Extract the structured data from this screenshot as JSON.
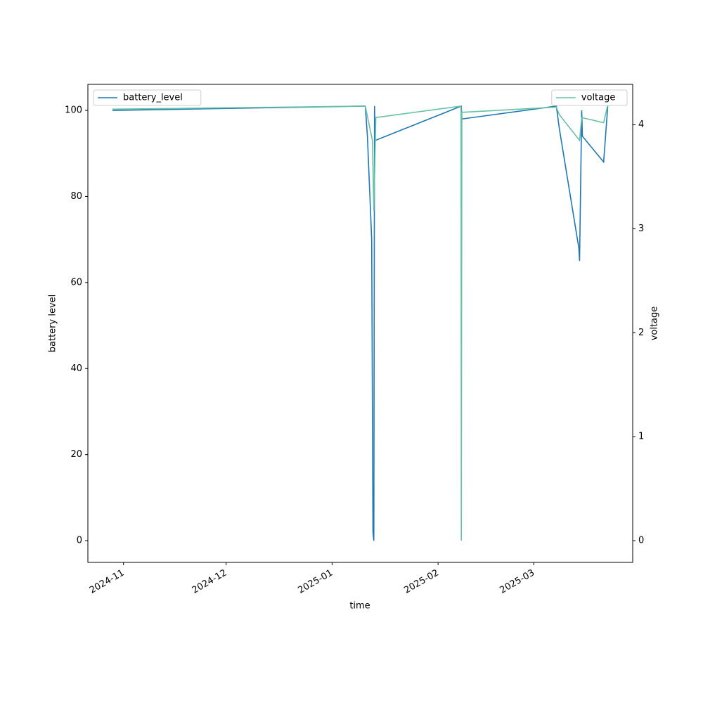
{
  "chart_data": {
    "type": "line",
    "x_label": "time",
    "y_label": "battery level",
    "y2_label": "voltage",
    "xlim": [
      "2024-10-21T14:00",
      "2025-03-29T22:00"
    ],
    "xticks": [
      "2024-11",
      "2024-12",
      "2025-01",
      "2025-02",
      "2025-03"
    ],
    "ylim": [
      -5.05,
      106.05
    ],
    "yticks": [
      0,
      20,
      40,
      60,
      80,
      100
    ],
    "y2lim": [
      -0.209,
      4.389
    ],
    "y2ticks": [
      0,
      1,
      2,
      3,
      4
    ],
    "series": [
      {
        "name": "battery_level",
        "color": "#1f77b4",
        "axis": "y",
        "legend_loc": "upper left",
        "x": [
          "2024-10-28T18:00",
          "2025-01-10T17:00",
          "2025-01-11T08:00",
          "2025-01-12T14:00",
          "2025-01-12T23:00",
          "2025-01-13T05:00",
          "2025-01-13T10:00",
          "2025-01-13T14:00",
          "2025-02-07T19:00",
          "2025-02-07T23:00",
          "2025-03-07T14:00",
          "2025-03-08T10:00",
          "2025-03-14T04:00",
          "2025-03-14T09:00",
          "2025-03-15T00:00",
          "2025-03-15T05:00",
          "2025-03-21T10:00",
          "2025-03-22T15:00"
        ],
        "values": [
          100,
          101,
          94,
          70,
          2,
          0,
          101,
          93,
          101,
          98,
          101,
          96,
          68,
          65,
          100,
          94,
          88,
          101
        ]
      },
      {
        "name": "voltage",
        "color": "#66c2a5",
        "axis": "y2",
        "legend_loc": "upper right",
        "x": [
          "2024-10-28T18:00",
          "2025-01-10T17:00",
          "2025-01-12T19:00",
          "2025-01-13T05:00",
          "2025-01-13T19:00",
          "2025-02-07T17:00",
          "2025-02-07T19:00",
          "2025-02-07T23:00",
          "2025-03-07T14:00",
          "2025-03-08T10:00",
          "2025-03-14T09:00",
          "2025-03-15T00:00",
          "2025-03-21T10:00",
          "2025-03-22T15:00"
        ],
        "values": [
          4.15,
          4.18,
          3.85,
          3.17,
          4.07,
          4.18,
          0,
          4.12,
          4.17,
          4.1,
          3.85,
          4.07,
          4.02,
          4.19
        ]
      }
    ]
  }
}
